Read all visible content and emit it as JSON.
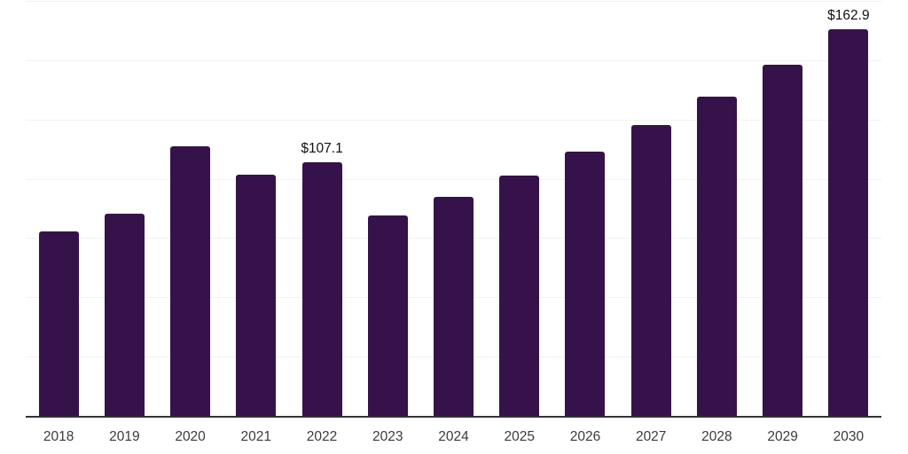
{
  "chart": {
    "background": "#ffffff",
    "bar_color": "#36124b",
    "grid_color": "#f2f1f3",
    "axis_color": "#333333",
    "tick_label_color": "#3b3b3b",
    "data_label_color": "#111111"
  },
  "chart_data": {
    "type": "bar",
    "title": "",
    "xlabel": "",
    "ylabel": "",
    "categories": [
      "2018",
      "2019",
      "2020",
      "2021",
      "2022",
      "2023",
      "2024",
      "2025",
      "2026",
      "2027",
      "2028",
      "2029",
      "2030"
    ],
    "values": [
      77.8,
      85.4,
      113.8,
      101.6,
      107.1,
      84.4,
      92.3,
      101.5,
      111.6,
      122.5,
      134.7,
      148.2,
      162.9
    ],
    "value_prefix": "$",
    "labeled_points": [
      {
        "category": "2022",
        "label": "$107.1"
      },
      {
        "category": "2030",
        "label": "$162.9"
      }
    ],
    "ylim": [
      0,
      175
    ],
    "grid_interval": 25,
    "grid": "horizontal",
    "y_tick_labels_visible": false,
    "legend": "none"
  }
}
